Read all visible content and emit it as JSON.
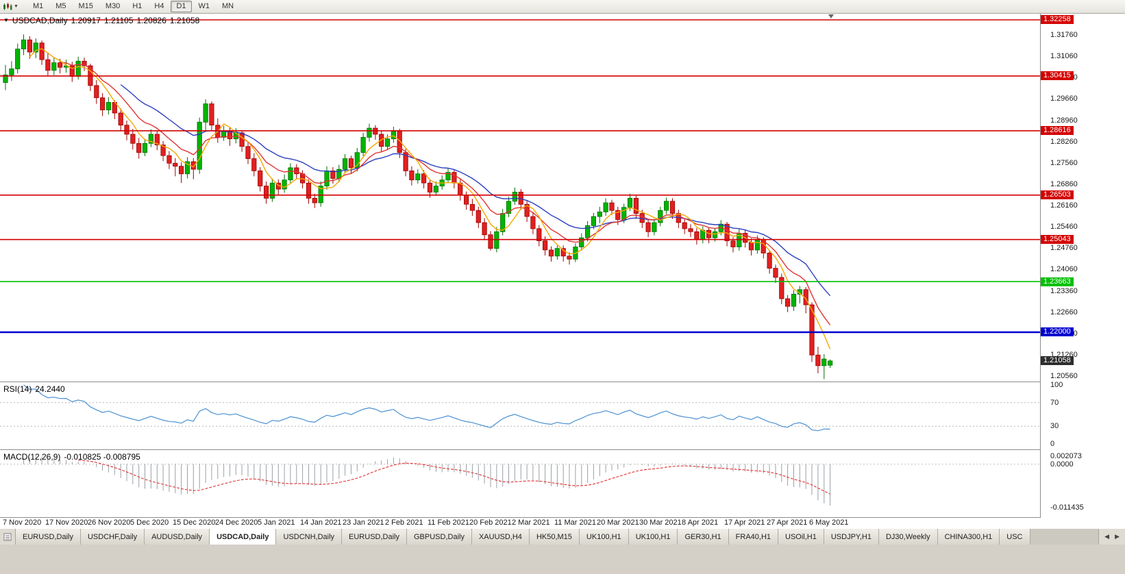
{
  "toolbar": {
    "timeframes": [
      "M1",
      "M5",
      "M15",
      "M30",
      "H1",
      "H4",
      "D1",
      "W1",
      "MN"
    ],
    "active": "D1"
  },
  "icons": {
    "symbol_dropdown": "▼",
    "toolbar_caret": "▼",
    "tab_scroll_left": "◀",
    "tab_scroll_right": "▶"
  },
  "chart_data": {
    "type": "candlestick",
    "symbol": "USDCAD",
    "timeframe": "Daily",
    "title": {
      "symbol": "USDCAD,Daily",
      "open": "1.20917",
      "high": "1.21105",
      "low": "1.20826",
      "close": "1.21058"
    },
    "y_range": {
      "top": 1.3246,
      "bottom": 1.2038
    },
    "price_axis_labels": [
      "1.31760",
      "1.31060",
      "1.30360",
      "1.29660",
      "1.28960",
      "1.28260",
      "1.27560",
      "1.26860",
      "1.26160",
      "1.25460",
      "1.24760",
      "1.24060",
      "1.23360",
      "1.22660",
      "1.21960",
      "1.21260",
      "1.20560"
    ],
    "x_axis_labels": [
      {
        "i": 0,
        "t": "7 Nov 2020"
      },
      {
        "i": 7,
        "t": "17 Nov 2020"
      },
      {
        "i": 14,
        "t": "26 Nov 2020"
      },
      {
        "i": 21,
        "t": "5 Dec 2020"
      },
      {
        "i": 28,
        "t": "15 Dec 2020"
      },
      {
        "i": 35,
        "t": "24 Dec 2020"
      },
      {
        "i": 42,
        "t": "5 Jan 2021"
      },
      {
        "i": 49,
        "t": "14 Jan 2021"
      },
      {
        "i": 56,
        "t": "23 Jan 2021"
      },
      {
        "i": 63,
        "t": "2 Feb 2021"
      },
      {
        "i": 70,
        "t": "11 Feb 2021"
      },
      {
        "i": 77,
        "t": "20 Feb 2021"
      },
      {
        "i": 84,
        "t": "2 Mar 2021"
      },
      {
        "i": 91,
        "t": "11 Mar 2021"
      },
      {
        "i": 98,
        "t": "20 Mar 2021"
      },
      {
        "i": 105,
        "t": "30 Mar 2021"
      },
      {
        "i": 112,
        "t": "8 Apr 2021"
      },
      {
        "i": 119,
        "t": "17 Apr 2021"
      },
      {
        "i": 126,
        "t": "27 Apr 2021"
      },
      {
        "i": 133,
        "t": "6 May 2021"
      }
    ],
    "levels": [
      {
        "value": 1.32258,
        "label": "1.32258",
        "color": "#d40000",
        "width": 1.6
      },
      {
        "value": 1.30415,
        "label": "1.30415",
        "color": "#d40000",
        "width": 1.6
      },
      {
        "value": 1.28616,
        "label": "1.28616",
        "color": "#d40000",
        "width": 1.6
      },
      {
        "value": 1.26503,
        "label": "1.26503",
        "color": "#d40000",
        "width": 1.6
      },
      {
        "value": 1.25043,
        "label": "1.25043",
        "color": "#d40000",
        "width": 1.6
      },
      {
        "value": 1.23663,
        "label": "1.23663",
        "color": "#00c000",
        "width": 1.6
      },
      {
        "value": 1.22,
        "label": "1.22000",
        "color": "#0000d0",
        "width": 2.4
      }
    ],
    "current_price": {
      "label": "1.21058",
      "value": 1.21058,
      "badge_color": "#2e2e2e"
    },
    "colors": {
      "bull": "#00b400",
      "bull_border": "#007000",
      "bear": "#e02020",
      "bear_border": "#9c0000",
      "background": "#ffffff"
    },
    "moving_averages": [
      {
        "period": 20,
        "type": "ema",
        "color": "#2b3fbf"
      },
      {
        "period": 10,
        "type": "ema",
        "color": "#e03434"
      },
      {
        "period": 5,
        "type": "sma",
        "color": "#f5a800"
      }
    ],
    "candles": [
      [
        1.302,
        1.3078,
        1.2995,
        1.3045
      ],
      [
        1.3045,
        1.309,
        1.3025,
        1.3065
      ],
      [
        1.3065,
        1.3148,
        1.305,
        1.313
      ],
      [
        1.313,
        1.3178,
        1.311,
        1.316
      ],
      [
        1.316,
        1.3172,
        1.3098,
        1.312
      ],
      [
        1.312,
        1.3165,
        1.31,
        1.315
      ],
      [
        1.315,
        1.3158,
        1.3078,
        1.3095
      ],
      [
        1.3095,
        1.3118,
        1.304,
        1.306
      ],
      [
        1.306,
        1.3102,
        1.3044,
        1.3085
      ],
      [
        1.3085,
        1.3098,
        1.305,
        1.307
      ],
      [
        1.307,
        1.3095,
        1.3052,
        1.3075
      ],
      [
        1.3075,
        1.3088,
        1.3022,
        1.304
      ],
      [
        1.304,
        1.3105,
        1.303,
        1.309
      ],
      [
        1.309,
        1.3102,
        1.3058,
        1.3075
      ],
      [
        1.3075,
        1.3082,
        1.2992,
        1.301
      ],
      [
        1.301,
        1.3028,
        1.295,
        1.297
      ],
      [
        1.297,
        1.2985,
        1.291,
        1.293
      ],
      [
        1.293,
        1.2972,
        1.2915,
        1.2955
      ],
      [
        1.2955,
        1.2962,
        1.29,
        1.292
      ],
      [
        1.292,
        1.2935,
        1.286,
        1.288
      ],
      [
        1.288,
        1.2895,
        1.283,
        1.285
      ],
      [
        1.285,
        1.2868,
        1.28,
        1.282
      ],
      [
        1.282,
        1.2838,
        1.277,
        1.279
      ],
      [
        1.279,
        1.2835,
        1.2778,
        1.282
      ],
      [
        1.282,
        1.2866,
        1.2808,
        1.285
      ],
      [
        1.285,
        1.286,
        1.2798,
        1.2815
      ],
      [
        1.2815,
        1.2828,
        1.2762,
        1.278
      ],
      [
        1.278,
        1.2795,
        1.2736,
        1.2755
      ],
      [
        1.2755,
        1.2772,
        1.2712,
        1.2745
      ],
      [
        1.2745,
        1.2758,
        1.269,
        1.272
      ],
      [
        1.272,
        1.2775,
        1.2705,
        1.276
      ],
      [
        1.276,
        1.2772,
        1.2702,
        1.2735
      ],
      [
        1.2735,
        1.2905,
        1.272,
        1.289
      ],
      [
        1.289,
        1.2965,
        1.2858,
        1.295
      ],
      [
        1.295,
        1.2958,
        1.2862,
        1.288
      ],
      [
        1.288,
        1.2902,
        1.2822,
        1.284
      ],
      [
        1.284,
        1.2878,
        1.2828,
        1.286
      ],
      [
        1.286,
        1.2872,
        1.2812,
        1.2835
      ],
      [
        1.2835,
        1.287,
        1.282,
        1.2855
      ],
      [
        1.2855,
        1.2862,
        1.2792,
        1.281
      ],
      [
        1.281,
        1.2825,
        1.2752,
        1.277
      ],
      [
        1.277,
        1.2788,
        1.2712,
        1.273
      ],
      [
        1.273,
        1.2742,
        1.2662,
        1.268
      ],
      [
        1.268,
        1.2695,
        1.2622,
        1.264
      ],
      [
        1.264,
        1.2705,
        1.2628,
        1.269
      ],
      [
        1.269,
        1.2702,
        1.265,
        1.267
      ],
      [
        1.267,
        1.2718,
        1.2658,
        1.27
      ],
      [
        1.27,
        1.2755,
        1.269,
        1.274
      ],
      [
        1.274,
        1.2752,
        1.2702,
        1.272
      ],
      [
        1.272,
        1.2732,
        1.2672,
        1.269
      ],
      [
        1.269,
        1.2702,
        1.2622,
        1.264
      ],
      [
        1.264,
        1.2655,
        1.2608,
        1.2625
      ],
      [
        1.2625,
        1.2695,
        1.2612,
        1.268
      ],
      [
        1.268,
        1.2745,
        1.2668,
        1.273
      ],
      [
        1.273,
        1.2742,
        1.2688,
        1.2705
      ],
      [
        1.2705,
        1.275,
        1.2692,
        1.2735
      ],
      [
        1.2735,
        1.2785,
        1.2722,
        1.277
      ],
      [
        1.277,
        1.278,
        1.2722,
        1.274
      ],
      [
        1.274,
        1.2805,
        1.2728,
        1.279
      ],
      [
        1.279,
        1.2855,
        1.2778,
        1.284
      ],
      [
        1.284,
        1.2885,
        1.2826,
        1.287
      ],
      [
        1.287,
        1.288,
        1.2832,
        1.285
      ],
      [
        1.285,
        1.2862,
        1.2792,
        1.281
      ],
      [
        1.281,
        1.285,
        1.2798,
        1.2835
      ],
      [
        1.2835,
        1.2875,
        1.2822,
        1.286
      ],
      [
        1.286,
        1.2868,
        1.2772,
        1.279
      ],
      [
        1.279,
        1.2802,
        1.2712,
        1.273
      ],
      [
        1.273,
        1.2745,
        1.2682,
        1.27
      ],
      [
        1.27,
        1.2735,
        1.2688,
        1.272
      ],
      [
        1.272,
        1.2732,
        1.2672,
        1.269
      ],
      [
        1.269,
        1.2702,
        1.2642,
        1.266
      ],
      [
        1.266,
        1.2695,
        1.2648,
        1.268
      ],
      [
        1.268,
        1.2715,
        1.2668,
        1.27
      ],
      [
        1.27,
        1.2738,
        1.269,
        1.2725
      ],
      [
        1.2725,
        1.2735,
        1.2672,
        1.269
      ],
      [
        1.269,
        1.2702,
        1.2632,
        1.265
      ],
      [
        1.265,
        1.2662,
        1.2602,
        1.262
      ],
      [
        1.262,
        1.2638,
        1.2582,
        1.26
      ],
      [
        1.26,
        1.2612,
        1.2542,
        1.256
      ],
      [
        1.256,
        1.2575,
        1.2502,
        1.252
      ],
      [
        1.252,
        1.2532,
        1.2468,
        1.2475
      ],
      [
        1.2475,
        1.2545,
        1.2462,
        1.253
      ],
      [
        1.253,
        1.2605,
        1.2518,
        1.259
      ],
      [
        1.259,
        1.2645,
        1.2578,
        1.263
      ],
      [
        1.263,
        1.2675,
        1.2618,
        1.266
      ],
      [
        1.266,
        1.267,
        1.2602,
        1.262
      ],
      [
        1.262,
        1.2632,
        1.2562,
        1.258
      ],
      [
        1.258,
        1.2595,
        1.2522,
        1.254
      ],
      [
        1.254,
        1.2552,
        1.2482,
        1.25
      ],
      [
        1.25,
        1.2515,
        1.2452,
        1.247
      ],
      [
        1.247,
        1.2482,
        1.2432,
        1.245
      ],
      [
        1.245,
        1.2488,
        1.2438,
        1.2475
      ],
      [
        1.2475,
        1.2485,
        1.2432,
        1.245
      ],
      [
        1.245,
        1.2462,
        1.2422,
        1.244
      ],
      [
        1.244,
        1.2492,
        1.243,
        1.248
      ],
      [
        1.248,
        1.2525,
        1.2468,
        1.251
      ],
      [
        1.251,
        1.2565,
        1.2498,
        1.255
      ],
      [
        1.255,
        1.2592,
        1.2538,
        1.258
      ],
      [
        1.258,
        1.2612,
        1.2558,
        1.2595
      ],
      [
        1.2595,
        1.264,
        1.2582,
        1.2625
      ],
      [
        1.2625,
        1.2635,
        1.2585,
        1.26
      ],
      [
        1.26,
        1.2612,
        1.2552,
        1.257
      ],
      [
        1.257,
        1.2622,
        1.2558,
        1.261
      ],
      [
        1.261,
        1.2655,
        1.2598,
        1.264
      ],
      [
        1.264,
        1.265,
        1.2572,
        1.259
      ],
      [
        1.259,
        1.2602,
        1.2542,
        1.256
      ],
      [
        1.256,
        1.2572,
        1.2512,
        1.253
      ],
      [
        1.253,
        1.2572,
        1.2518,
        1.256
      ],
      [
        1.256,
        1.2612,
        1.2548,
        1.26
      ],
      [
        1.26,
        1.2642,
        1.2588,
        1.263
      ],
      [
        1.263,
        1.264,
        1.2572,
        1.259
      ],
      [
        1.259,
        1.2602,
        1.2542,
        1.256
      ],
      [
        1.256,
        1.2572,
        1.2522,
        1.254
      ],
      [
        1.254,
        1.2555,
        1.2512,
        1.253
      ],
      [
        1.253,
        1.2542,
        1.2488,
        1.2505
      ],
      [
        1.2505,
        1.2548,
        1.2492,
        1.2535
      ],
      [
        1.2535,
        1.2545,
        1.2492,
        1.251
      ],
      [
        1.251,
        1.2542,
        1.2498,
        1.253
      ],
      [
        1.253,
        1.2568,
        1.2518,
        1.2555
      ],
      [
        1.2555,
        1.2562,
        1.2482,
        1.25
      ],
      [
        1.25,
        1.2512,
        1.2462,
        1.248
      ],
      [
        1.248,
        1.2538,
        1.2468,
        1.2525
      ],
      [
        1.2525,
        1.2535,
        1.2478,
        1.2495
      ],
      [
        1.2495,
        1.2508,
        1.2452,
        1.247
      ],
      [
        1.247,
        1.2518,
        1.2458,
        1.2505
      ],
      [
        1.2505,
        1.2512,
        1.2442,
        1.246
      ],
      [
        1.246,
        1.247,
        1.2392,
        1.241
      ],
      [
        1.241,
        1.2422,
        1.2362,
        1.238
      ],
      [
        1.238,
        1.2392,
        1.2292,
        1.231
      ],
      [
        1.231,
        1.2322,
        1.2266,
        1.2285
      ],
      [
        1.2285,
        1.2338,
        1.227,
        1.2325
      ],
      [
        1.2325,
        1.2352,
        1.2295,
        1.234
      ],
      [
        1.234,
        1.2348,
        1.2262,
        1.229
      ],
      [
        1.229,
        1.2298,
        1.2102,
        1.2125
      ],
      [
        1.2125,
        1.2152,
        1.2065,
        1.209
      ],
      [
        1.209,
        1.2128,
        1.2046,
        1.2112
      ],
      [
        1.20917,
        1.21105,
        1.20826,
        1.21058
      ]
    ]
  },
  "rsi": {
    "label": "RSI(14)",
    "value": "24.2440",
    "period": 14,
    "color": "#4a90d2",
    "ylim": [
      0,
      100
    ],
    "levels": [
      70,
      30
    ],
    "axis_labels": [
      {
        "v": 100,
        "t": "100"
      },
      {
        "v": 70,
        "t": "70"
      },
      {
        "v": 30,
        "t": "30"
      },
      {
        "v": 0,
        "t": "0"
      }
    ]
  },
  "macd": {
    "label": "MACD(12,26,9)",
    "value": "-0.010825 -0.008795",
    "fast": 12,
    "slow": 26,
    "signal": 9,
    "hist_color": "#9aa0a6",
    "signal_color": "#e03030",
    "range": {
      "top": 0.003,
      "bottom": -0.0125
    },
    "axis_labels": [
      {
        "v": 0.002073,
        "t": "0.002073"
      },
      {
        "v": 0,
        "t": "0.0000"
      },
      {
        "v": -0.011435,
        "t": "-0.011435"
      }
    ]
  },
  "tabs": {
    "items": [
      "EURUSD,Daily",
      "USDCHF,Daily",
      "AUDUSD,Daily",
      "USDCAD,Daily",
      "USDCNH,Daily",
      "EURUSD,Daily",
      "GBPUSD,Daily",
      "XAUUSD,H4",
      "HK50,M15",
      "UK100,H1",
      "UK100,H1",
      "GER30,H1",
      "FRA40,H1",
      "USOil,H1",
      "USDJPY,H1",
      "DJ30,Weekly",
      "CHINA300,H1",
      "USC"
    ],
    "active_index": 3
  }
}
